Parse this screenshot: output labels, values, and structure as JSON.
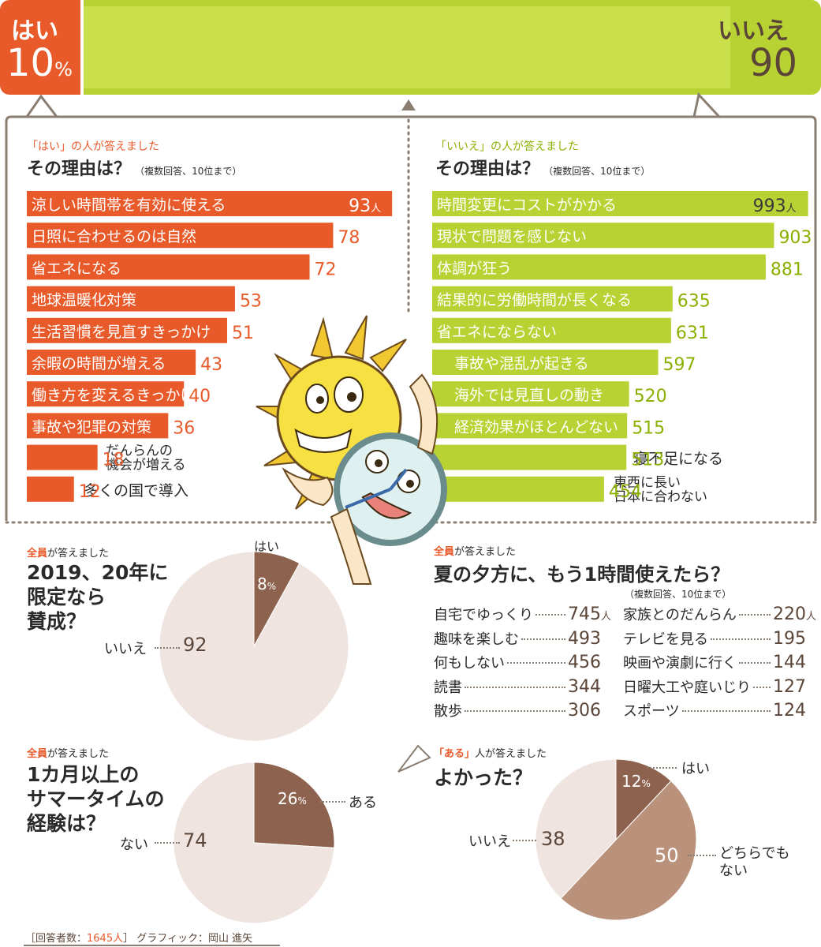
{
  "colors": {
    "orange": "#e85a2a",
    "green": "#b7d232",
    "frame": "#8a7d72",
    "brown": "#8d6350",
    "pie_light": "#efe4e0",
    "pie_mid": "#ba927c",
    "dark_text": "#5a4538"
  },
  "top": {
    "yes_label": "はい",
    "yes_value": "10",
    "yes_pct": "%",
    "no_label": "いいえ",
    "no_value": "90"
  },
  "yes_section": {
    "pre": "「はい」の人が答えました",
    "title": "その理由は？",
    "note": "（複数回答、10位まで）"
  },
  "no_section": {
    "pre": "「いいえ」の人が答えました",
    "title": "その理由は？",
    "note": "（複数回答、10位まで）"
  },
  "suffix_person": "人",
  "limited": {
    "pre_em": "全員",
    "pre_rest": "が答えました",
    "title": "2019、20年に\n限定なら\n賛成？",
    "yes": "はい",
    "yes_value": "8",
    "pct": "%",
    "no": "いいえ",
    "no_value": "92"
  },
  "evening": {
    "pre_em": "全員",
    "pre_rest": "が答えました",
    "title": "夏の夕方に、もう1時間使えたら？",
    "note": "（複数回答、10位まで）",
    "left": [
      {
        "label": "自宅でゆっくり",
        "value": "745",
        "unit": "人"
      },
      {
        "label": "趣味を楽しむ",
        "value": "493",
        "unit": ""
      },
      {
        "label": "何もしない",
        "value": "456",
        "unit": ""
      },
      {
        "label": "読書",
        "value": "344",
        "unit": ""
      },
      {
        "label": "散歩",
        "value": "306",
        "unit": ""
      }
    ],
    "right": [
      {
        "label": "家族とのだんらん",
        "value": "220",
        "unit": "人"
      },
      {
        "label": "テレビを見る",
        "value": "195",
        "unit": ""
      },
      {
        "label": "映画や演劇に行く",
        "value": "144",
        "unit": ""
      },
      {
        "label": "日曜大工や庭いじり",
        "value": "127",
        "unit": ""
      },
      {
        "label": "スポーツ",
        "value": "124",
        "unit": ""
      }
    ]
  },
  "experience": {
    "pre_em": "全員",
    "pre_rest": "が答えました",
    "title": "1カ月以上の\nサマータイムの\n経験は？",
    "yes": "ある",
    "yes_value": "26",
    "pct": "%",
    "no": "ない",
    "no_value": "74"
  },
  "good": {
    "pre_em": "「ある」",
    "pre_rest": "人が答えました",
    "title": "よかった？",
    "yes": "はい",
    "yes_value": "12",
    "pct": "%",
    "mid": "どちらでも\nない",
    "mid_value": "50",
    "no": "いいえ",
    "no_value": "38"
  },
  "footer": {
    "prefix": "［回答者数：",
    "count": "1645人",
    "suffix": "］ グラフィック：岡山 進矢"
  },
  "chart_data": [
    {
      "type": "bar",
      "title": "はい／いいえ",
      "categories": [
        "はい",
        "いいえ"
      ],
      "values": [
        10,
        90
      ],
      "unit": "%"
    },
    {
      "type": "bar",
      "title": "その理由は？",
      "subtitle": "「はい」の人が答えました",
      "categories": [
        "涼しい時間帯を有効に使える",
        "日照に合わせるのは自然",
        "省エネになる",
        "地球温暖化対策",
        "生活習慣を見直すきっかけ",
        "余暇の時間が増える",
        "働き方を変えるきっかけ",
        "事故や犯罪の対策",
        "だんらんの\n機会が増える",
        "多くの国で導入"
      ],
      "values": [
        93,
        78,
        72,
        53,
        51,
        43,
        40,
        36,
        18,
        12
      ]
    },
    {
      "type": "bar",
      "title": "その理由は？",
      "subtitle": "「いいえ」の人が答えました",
      "categories": [
        "時間変更にコストがかかる",
        "現状で問題を感じない",
        "体調が狂う",
        "結果的に労働時間が長くなる",
        "省エネにならない",
        "事故や混乱が起きる",
        "海外では見直しの動き",
        "経済効果がほとんどない",
        "寝不足になる",
        "東西に長い\n日本に合わない"
      ],
      "values": [
        993,
        903,
        881,
        635,
        631,
        597,
        520,
        515,
        513,
        454
      ]
    },
    {
      "type": "pie",
      "title": "2019、20年に限定なら賛成？",
      "categories": [
        "はい",
        "いいえ"
      ],
      "values": [
        8,
        92
      ]
    },
    {
      "type": "table",
      "title": "夏の夕方に、もう1時間使えたら？",
      "categories": [
        "自宅でゆっくり",
        "趣味を楽しむ",
        "何もしない",
        "読書",
        "散歩",
        "家族とのだんらん",
        "テレビを見る",
        "映画や演劇に行く",
        "日曜大工や庭いじり",
        "スポーツ"
      ],
      "values": [
        745,
        493,
        456,
        344,
        306,
        220,
        195,
        144,
        127,
        124
      ]
    },
    {
      "type": "pie",
      "title": "1カ月以上のサマータイムの経験は？",
      "categories": [
        "ある",
        "ない"
      ],
      "values": [
        26,
        74
      ]
    },
    {
      "type": "pie",
      "title": "よかった？",
      "categories": [
        "はい",
        "どちらでもない",
        "いいえ"
      ],
      "values": [
        12,
        50,
        38
      ]
    }
  ]
}
